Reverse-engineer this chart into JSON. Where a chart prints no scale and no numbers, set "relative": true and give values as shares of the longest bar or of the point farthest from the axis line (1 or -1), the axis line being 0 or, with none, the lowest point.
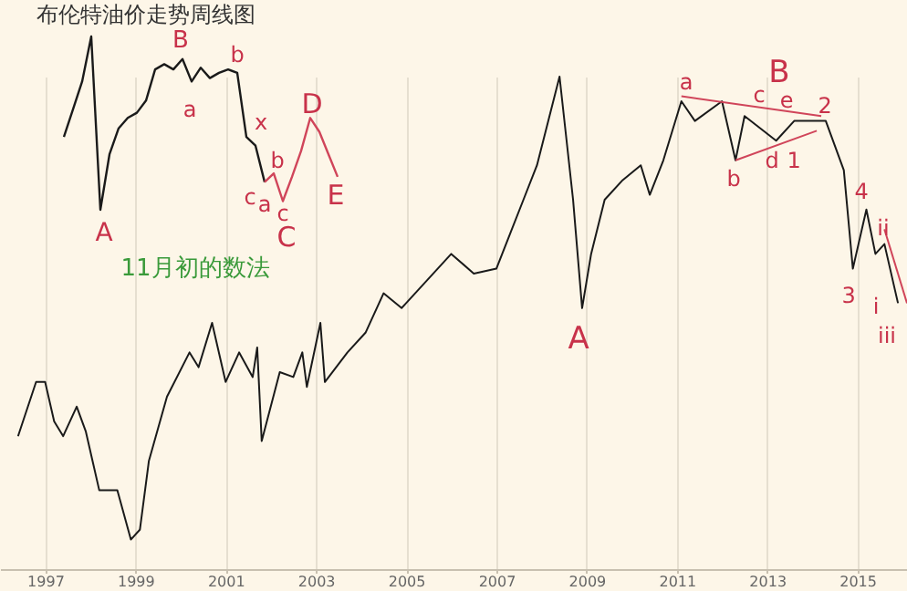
{
  "chart_data": [
    {
      "type": "line",
      "title": "布伦特油价走势周线图",
      "relative": true,
      "grid": "x",
      "xlim": [
        1996,
        2016.1
      ],
      "xticks": [
        1997,
        1999,
        2001,
        2003,
        2005,
        2007,
        2009,
        2011,
        2013,
        2015
      ],
      "series": [
        {
          "color": "#1a1a1a",
          "x": [
            1996.4,
            1996.8,
            1997.0,
            1997.2,
            1997.4,
            1997.7,
            1997.9,
            1998.2,
            1998.6,
            1998.9,
            1999.1,
            1999.3,
            1999.7,
            2000.2,
            2000.4,
            2000.7,
            2001.0,
            2001.3,
            2001.6,
            2001.7,
            2001.8,
            2002.2,
            2002.5,
            2002.7,
            2002.8,
            2003.1,
            2003.2,
            2003.7,
            2004.1,
            2004.5,
            2004.9,
            2005.0,
            2006.0,
            2006.5,
            2007.0,
            2007.6,
            2007.9,
            2008.4,
            2008.7,
            2008.9,
            2009.1,
            2009.4,
            2009.8,
            2010.2,
            2010.4,
            2010.7,
            2011.1,
            2011.4,
            2012.0,
            2012.3,
            2012.5,
            2013.2,
            2013.6,
            2014.3,
            2014.7,
            2014.9,
            2015.2,
            2015.4,
            2015.6,
            2015.9
          ],
          "values": [
            0.27,
            0.38,
            0.38,
            0.3,
            0.27,
            0.33,
            0.28,
            0.16,
            0.16,
            0.06,
            0.08,
            0.22,
            0.35,
            0.44,
            0.41,
            0.5,
            0.38,
            0.44,
            0.39,
            0.45,
            0.26,
            0.4,
            0.39,
            0.44,
            0.37,
            0.5,
            0.38,
            0.44,
            0.48,
            0.56,
            0.53,
            0.54,
            0.64,
            0.6,
            0.61,
            0.75,
            0.82,
            1.0,
            0.75,
            0.53,
            0.64,
            0.75,
            0.79,
            0.82,
            0.76,
            0.83,
            0.95,
            0.91,
            0.95,
            0.83,
            0.92,
            0.87,
            0.91,
            0.91,
            0.81,
            0.61,
            0.73,
            0.64,
            0.66,
            0.54
          ]
        },
        {
          "color": "#d0455a",
          "x": [
            2011.1,
            2014.2
          ],
          "values": [
            0.96,
            0.92
          ]
        },
        {
          "color": "#d0455a",
          "x": [
            2012.3,
            2014.1
          ],
          "values": [
            0.83,
            0.89
          ]
        },
        {
          "color": "#d0455a",
          "x": [
            2015.6,
            2016.1
          ],
          "values": [
            0.69,
            0.54
          ]
        }
      ],
      "annotations": [
        "A",
        "a",
        "B",
        "2",
        "c",
        "e",
        "b",
        "d",
        "1",
        "4",
        "ii",
        "3",
        "i",
        "iii"
      ]
    },
    {
      "type": "line",
      "relative": true,
      "categories": [
        null,
        null,
        null,
        null,
        null,
        null,
        null,
        null,
        null,
        null,
        null,
        null,
        null,
        null,
        null,
        null,
        null,
        null,
        null,
        null,
        null,
        null,
        null,
        null,
        null,
        null,
        null,
        null,
        null,
        null,
        null
      ],
      "series": [
        {
          "color": "#1a1a1a",
          "values": [
            0.42,
            0.58,
            0.74,
            1.0,
            0.0,
            0.32,
            0.47,
            0.53,
            0.56,
            0.63,
            0.81,
            0.84,
            0.81,
            0.87,
            0.74,
            0.82,
            0.76,
            0.79,
            0.81,
            0.79,
            0.42,
            0.37,
            0.16,
            null,
            null,
            null,
            null,
            null,
            null,
            null,
            null
          ]
        },
        {
          "color": "#d0455a",
          "values": [
            null,
            null,
            null,
            null,
            null,
            null,
            null,
            null,
            null,
            null,
            null,
            null,
            null,
            null,
            null,
            null,
            null,
            null,
            null,
            null,
            null,
            null,
            0.16,
            0.21,
            0.05,
            0.19,
            0.34,
            0.53,
            0.45,
            0.32,
            0.19
          ]
        }
      ],
      "annotations": [
        "B",
        "a",
        "b",
        "A",
        "c",
        "a",
        "x",
        "b",
        "c",
        "C",
        "D",
        "E",
        "11月初的数法"
      ]
    }
  ]
}
